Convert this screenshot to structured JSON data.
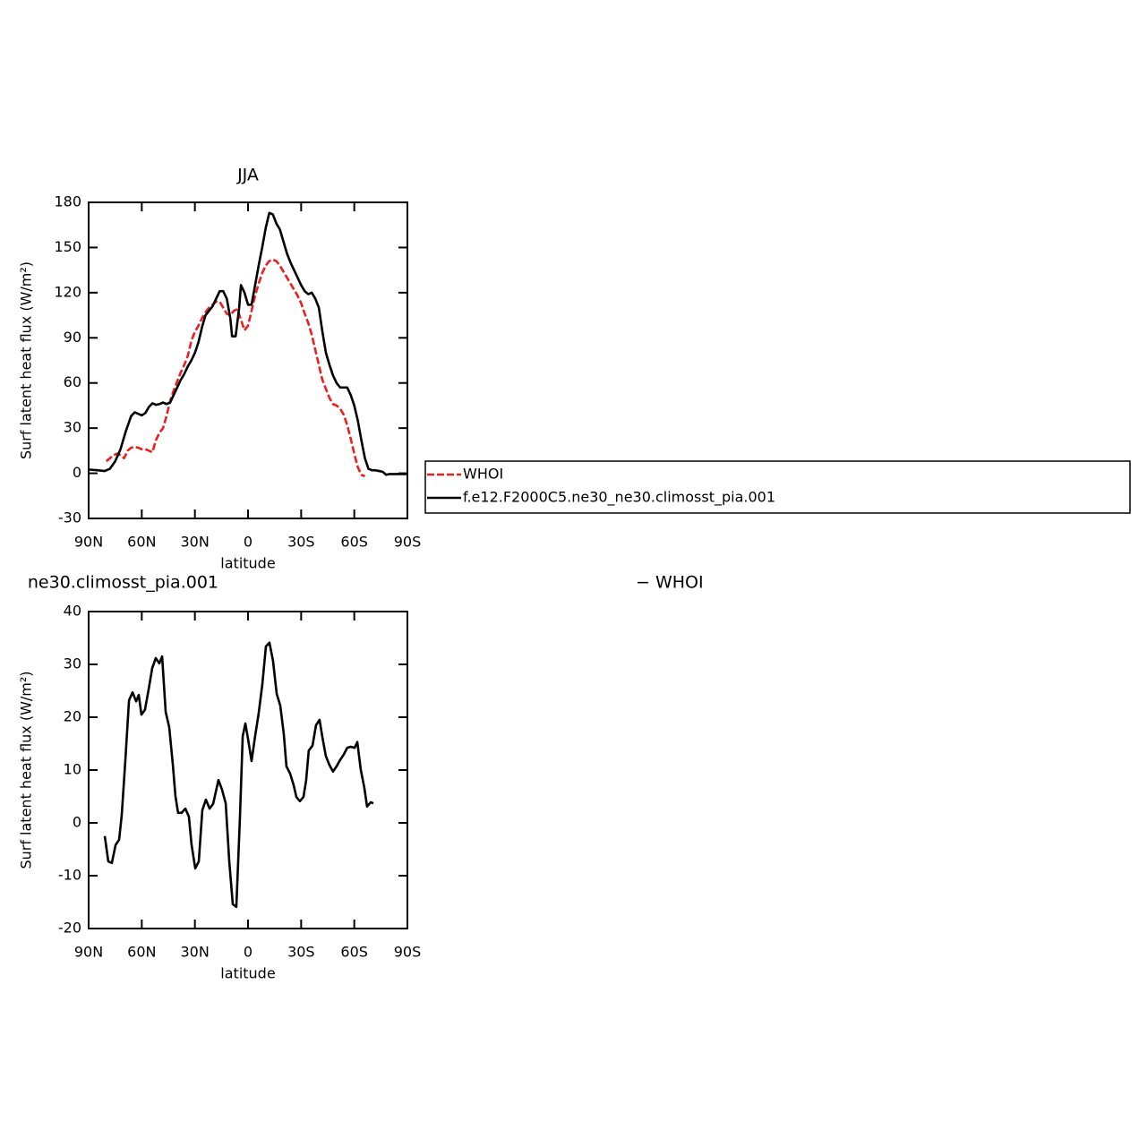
{
  "chart_data": [
    {
      "type": "line",
      "title": "JJA",
      "xlabel": "latitude",
      "ylabel": "Surf latent heat flux (W/m²)",
      "xlim": [
        90,
        -90
      ],
      "xticks": [
        {
          "value": 90,
          "label": "90N"
        },
        {
          "value": 60,
          "label": "60N"
        },
        {
          "value": 30,
          "label": "30N"
        },
        0,
        {
          "value": -30,
          "label": "30S"
        },
        {
          "value": -60,
          "label": "60S"
        },
        {
          "value": -90,
          "label": "90S"
        }
      ],
      "ylim": [
        -30,
        180
      ],
      "yticks": [
        -30,
        0,
        30,
        60,
        90,
        120,
        150,
        180
      ],
      "legend": "outside-right",
      "series": [
        {
          "name": "WHOI",
          "color": "#e8201e",
          "dashed": true,
          "x": [
            80,
            78,
            76,
            74,
            72,
            70,
            68,
            66,
            64,
            62,
            60,
            58,
            56,
            54,
            52,
            50,
            48,
            46,
            44,
            42,
            40,
            38,
            36,
            34,
            32,
            30,
            28,
            26,
            24,
            22,
            20,
            18,
            16,
            14,
            12,
            10,
            8,
            6,
            4,
            2,
            0,
            -2,
            -4,
            -6,
            -8,
            -10,
            -12,
            -14,
            -16,
            -18,
            -20,
            -22,
            -24,
            -26,
            -28,
            -30,
            -32,
            -34,
            -36,
            -38,
            -40,
            -42,
            -44,
            -46,
            -48,
            -50,
            -52,
            -54,
            -56,
            -58,
            -60,
            -62,
            -64,
            -66
          ],
          "values": [
            8,
            10,
            12,
            13,
            12,
            10,
            15,
            17,
            17.5,
            17,
            16,
            16,
            15,
            14,
            22,
            27,
            30,
            38,
            48,
            55,
            61,
            67,
            72,
            78,
            88,
            94,
            98,
            103,
            107,
            110,
            112,
            114,
            114,
            110,
            106,
            105,
            108,
            109,
            102,
            95,
            98,
            108,
            118,
            126,
            133,
            138,
            141,
            142,
            141,
            138,
            134,
            130,
            126,
            122,
            118,
            113,
            106,
            100,
            92,
            82,
            72,
            62,
            56,
            50,
            46,
            45,
            43,
            39,
            32,
            23,
            13,
            4,
            -1,
            -2
          ]
        },
        {
          "name": "f.e12.F2000C5.ne30_ne30.climosst_pia.001",
          "color": "#000000",
          "dashed": false,
          "x": [
            90,
            85,
            81,
            78,
            75,
            72,
            69,
            66,
            64,
            62,
            60,
            58,
            56,
            54,
            52,
            50,
            48,
            46,
            44,
            42,
            40,
            38,
            36,
            34,
            32,
            30,
            28,
            26,
            24,
            22,
            20,
            18,
            16,
            14,
            12,
            10,
            9,
            7,
            5,
            4,
            2,
            0,
            -2,
            -4,
            -6,
            -8,
            -10,
            -12,
            -14,
            -16,
            -18,
            -20,
            -22,
            -24,
            -26,
            -28,
            -30,
            -32,
            -34,
            -36,
            -38,
            -40,
            -42,
            -44,
            -46,
            -48,
            -50,
            -52,
            -54,
            -56,
            -58,
            -60,
            -62,
            -64,
            -66,
            -68,
            -70,
            -72,
            -74,
            -76,
            -78,
            -80,
            -84,
            -90
          ],
          "values": [
            2.5,
            2,
            1.5,
            3,
            8,
            16,
            28,
            38,
            40.5,
            39.5,
            38.5,
            40,
            44,
            46.5,
            45.5,
            46,
            47,
            46,
            47,
            52,
            57,
            62,
            66,
            71,
            75,
            80,
            87,
            97,
            105,
            108,
            111,
            116,
            121,
            121,
            116,
            103,
            91,
            91,
            110,
            125,
            120,
            112,
            112,
            125,
            138,
            150,
            163,
            173,
            172,
            166,
            162,
            154,
            146,
            140,
            135,
            130,
            125,
            121,
            119,
            120,
            116,
            110,
            94,
            80,
            72,
            65,
            60,
            57,
            57,
            57,
            52,
            45,
            35,
            22,
            10,
            3,
            2,
            2,
            1.5,
            1,
            -1,
            -0.5,
            -0.5,
            -0.5
          ]
        }
      ]
    },
    {
      "type": "line",
      "title": "ne30.climosst_pia.001",
      "title_suffix": "− WHOI",
      "xlabel": "latitude",
      "ylabel": "Surf latent heat flux (W/m²)",
      "xlim": [
        90,
        -90
      ],
      "xticks": [
        {
          "value": 90,
          "label": "90N"
        },
        {
          "value": 60,
          "label": "60N"
        },
        {
          "value": 30,
          "label": "30N"
        },
        0,
        {
          "value": -30,
          "label": "30S"
        },
        {
          "value": -60,
          "label": "60S"
        },
        {
          "value": -90,
          "label": "90S"
        }
      ],
      "ylim": [
        -20,
        40
      ],
      "yticks": [
        -20,
        -10,
        0,
        10,
        20,
        30,
        40
      ],
      "series": [
        {
          "color": "#000000",
          "dashed": false,
          "x": [
            80.9,
            78.9,
            76.9,
            74.8,
            72.8,
            71.3,
            69.3,
            67.2,
            65.2,
            63.2,
            61.7,
            60.2,
            58.2,
            56.1,
            54.1,
            52.1,
            50.1,
            48.5,
            46.5,
            44.5,
            42.5,
            41.0,
            39.5,
            37.5,
            35.4,
            33.4,
            31.9,
            29.8,
            27.8,
            25.8,
            23.8,
            21.7,
            19.7,
            16.7,
            14.7,
            12.6,
            10.6,
            8.6,
            6.6,
            4.6,
            3.0,
            1.5,
            0.0,
            -2.0,
            -4.0,
            -6.0,
            -8.1,
            -10.1,
            -12.1,
            -14.1,
            -16.2,
            -18.2,
            -20.2,
            -21.7,
            -23.8,
            -25.8,
            -27.3,
            -29.3,
            -31.3,
            -32.8,
            -34.3,
            -36.4,
            -38.4,
            -40.4,
            -41.9,
            -43.9,
            -45.9,
            -48.0,
            -50.0,
            -52.0,
            -54.0,
            -56.0,
            -58.0,
            -60.2,
            -61.7,
            -63.7,
            -65.7,
            -67.2,
            -69.3,
            -70.8
          ],
          "values": [
            -2.5,
            -7.3,
            -7.6,
            -4.2,
            -3.2,
            1.5,
            11.7,
            23.2,
            24.7,
            23,
            24.2,
            20.5,
            21.4,
            25.3,
            29.3,
            31.2,
            30.2,
            31.5,
            21,
            18.1,
            11.2,
            5.1,
            1.9,
            1.9,
            2.7,
            1.2,
            -4.1,
            -8.6,
            -7.3,
            2.4,
            4.4,
            2.7,
            3.6,
            8.1,
            6.3,
            3.7,
            -7.3,
            -15.4,
            -15.9,
            0.7,
            16.4,
            18.8,
            15.9,
            11.7,
            16.4,
            20.7,
            26.3,
            33.4,
            34.1,
            30.7,
            24.4,
            22.2,
            16.8,
            10.7,
            9.3,
            7.1,
            4.9,
            4.1,
            4.9,
            8,
            13.7,
            14.6,
            18.5,
            19.5,
            16.4,
            12.7,
            11,
            9.7,
            10.7,
            11.9,
            12.9,
            14.2,
            14.4,
            14.2,
            15.3,
            10,
            6.6,
            3.1,
            3.9,
            3.7
          ]
        }
      ]
    }
  ]
}
